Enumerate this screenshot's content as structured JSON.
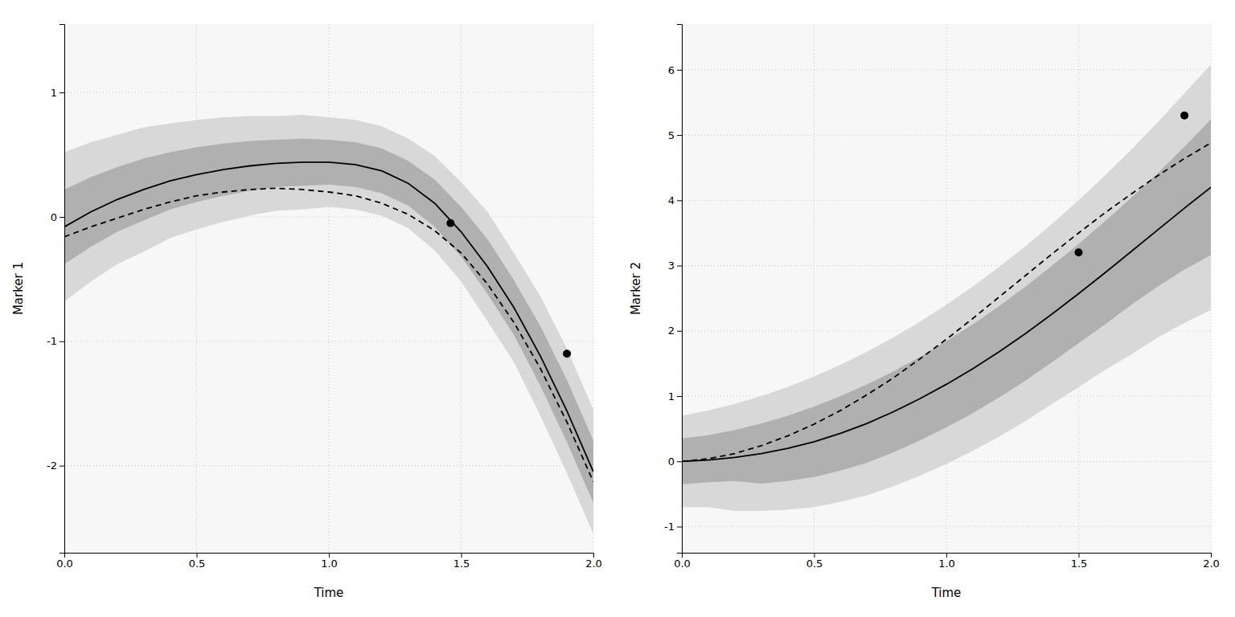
{
  "chart_data": [
    {
      "type": "line",
      "xlabel": "Time",
      "ylabel": "Marker 1",
      "xlim": [
        0.0,
        2.0
      ],
      "ylim": [
        -2.7,
        1.55
      ],
      "xticks": [
        {
          "value": 0.0,
          "label": "0.0"
        },
        0.5,
        {
          "value": 1.0,
          "label": "1.0"
        },
        1.5,
        {
          "value": 2.0,
          "label": "2.0"
        }
      ],
      "yticks": [
        -2,
        -1,
        0,
        1
      ],
      "grid": true,
      "series": [
        {
          "type": "band",
          "color": "#d8d8d8",
          "x": [
            0.0,
            0.1,
            0.2,
            0.3,
            0.4,
            0.5,
            0.6,
            0.7,
            0.8,
            0.9,
            1.0,
            1.1,
            1.2,
            1.3,
            1.4,
            1.5,
            1.6,
            1.7,
            1.8,
            1.9,
            2.0
          ],
          "lower": [
            -0.68,
            -0.52,
            -0.38,
            -0.28,
            -0.17,
            -0.1,
            -0.04,
            0.01,
            0.05,
            0.06,
            0.08,
            0.06,
            0.01,
            -0.09,
            -0.27,
            -0.52,
            -0.84,
            -1.17,
            -1.6,
            -2.06,
            -2.55
          ],
          "upper": [
            0.52,
            0.6,
            0.66,
            0.72,
            0.75,
            0.78,
            0.8,
            0.81,
            0.81,
            0.82,
            0.8,
            0.78,
            0.73,
            0.63,
            0.49,
            0.28,
            0.04,
            -0.29,
            -0.64,
            -1.06,
            -1.55
          ]
        },
        {
          "type": "band",
          "color": "#b0b0b0",
          "x": [
            0.0,
            0.1,
            0.2,
            0.3,
            0.4,
            0.5,
            0.6,
            0.7,
            0.8,
            0.9,
            1.0,
            1.1,
            1.2,
            1.3,
            1.4,
            1.5,
            1.6,
            1.7,
            1.8,
            1.9,
            2.0
          ],
          "lower": [
            -0.38,
            -0.24,
            -0.12,
            -0.03,
            0.06,
            0.12,
            0.17,
            0.21,
            0.24,
            0.25,
            0.26,
            0.24,
            0.19,
            0.09,
            -0.08,
            -0.32,
            -0.62,
            -0.95,
            -1.36,
            -1.81,
            -2.3
          ],
          "upper": [
            0.22,
            0.32,
            0.4,
            0.47,
            0.52,
            0.56,
            0.59,
            0.61,
            0.62,
            0.63,
            0.62,
            0.6,
            0.55,
            0.45,
            0.3,
            0.08,
            -0.18,
            -0.51,
            -0.88,
            -1.31,
            -1.8
          ]
        },
        {
          "type": "line",
          "line_style": "solid",
          "color": "#000000",
          "x": [
            0.0,
            0.1,
            0.2,
            0.3,
            0.4,
            0.5,
            0.6,
            0.7,
            0.8,
            0.9,
            1.0,
            1.1,
            1.2,
            1.3,
            1.4,
            1.5,
            1.6,
            1.7,
            1.8,
            1.9,
            2.0
          ],
          "values": [
            -0.08,
            0.04,
            0.14,
            0.22,
            0.29,
            0.34,
            0.38,
            0.41,
            0.43,
            0.44,
            0.44,
            0.42,
            0.37,
            0.27,
            0.11,
            -0.12,
            -0.4,
            -0.73,
            -1.12,
            -1.56,
            -2.05
          ]
        },
        {
          "type": "line",
          "line_style": "dashed",
          "color": "#000000",
          "x": [
            0.0,
            0.1,
            0.2,
            0.3,
            0.4,
            0.5,
            0.6,
            0.7,
            0.8,
            0.9,
            1.0,
            1.1,
            1.2,
            1.3,
            1.4,
            1.5,
            1.6,
            1.7,
            1.8,
            1.9,
            2.0
          ],
          "values": [
            -0.16,
            -0.08,
            -0.01,
            0.06,
            0.12,
            0.17,
            0.2,
            0.22,
            0.23,
            0.22,
            0.2,
            0.17,
            0.11,
            0.02,
            -0.11,
            -0.29,
            -0.54,
            -0.85,
            -1.22,
            -1.65,
            -2.13
          ]
        },
        {
          "type": "scatter",
          "marker": "circle",
          "color": "#000000",
          "x": [
            1.46,
            1.9
          ],
          "values": [
            -0.05,
            -1.1
          ]
        }
      ]
    },
    {
      "type": "line",
      "xlabel": "Time",
      "ylabel": "Marker 2",
      "xlim": [
        0.0,
        2.0
      ],
      "ylim": [
        -1.4,
        6.7
      ],
      "xticks": [
        {
          "value": 0.0,
          "label": "0.0"
        },
        0.5,
        {
          "value": 1.0,
          "label": "1.0"
        },
        1.5,
        {
          "value": 2.0,
          "label": "2.0"
        }
      ],
      "yticks": [
        -1,
        0,
        1,
        2,
        3,
        4,
        5,
        6
      ],
      "grid": true,
      "series": [
        {
          "type": "band",
          "color": "#d8d8d8",
          "x": [
            0.0,
            0.1,
            0.2,
            0.3,
            0.4,
            0.5,
            0.6,
            0.7,
            0.8,
            0.9,
            1.0,
            1.1,
            1.2,
            1.3,
            1.4,
            1.5,
            1.6,
            1.7,
            1.8,
            1.9,
            2.0
          ],
          "lower": [
            -0.7,
            -0.7,
            -0.76,
            -0.76,
            -0.74,
            -0.7,
            -0.62,
            -0.52,
            -0.38,
            -0.22,
            -0.04,
            0.16,
            0.38,
            0.62,
            0.88,
            1.14,
            1.4,
            1.64,
            1.9,
            2.12,
            2.32
          ],
          "upper": [
            0.7,
            0.78,
            0.88,
            1.0,
            1.14,
            1.3,
            1.48,
            1.68,
            1.9,
            2.14,
            2.4,
            2.68,
            2.98,
            3.3,
            3.64,
            4.0,
            4.38,
            4.78,
            5.2,
            5.64,
            6.08
          ]
        },
        {
          "type": "band",
          "color": "#b0b0b0",
          "x": [
            0.0,
            0.1,
            0.2,
            0.3,
            0.4,
            0.5,
            0.6,
            0.7,
            0.8,
            0.9,
            1.0,
            1.1,
            1.2,
            1.3,
            1.4,
            1.5,
            1.6,
            1.7,
            1.8,
            1.9,
            2.0
          ],
          "lower": [
            -0.35,
            -0.32,
            -0.3,
            -0.34,
            -0.3,
            -0.24,
            -0.14,
            -0.02,
            0.14,
            0.32,
            0.52,
            0.74,
            0.98,
            1.24,
            1.52,
            1.81,
            2.1,
            2.4,
            2.68,
            2.94,
            3.16
          ],
          "upper": [
            0.35,
            0.4,
            0.48,
            0.58,
            0.7,
            0.84,
            1.0,
            1.18,
            1.38,
            1.6,
            1.84,
            2.1,
            2.38,
            2.68,
            3.0,
            3.33,
            3.68,
            4.04,
            4.42,
            4.82,
            5.24
          ]
        },
        {
          "type": "line",
          "line_style": "solid",
          "color": "#000000",
          "x": [
            0.0,
            0.1,
            0.2,
            0.3,
            0.4,
            0.5,
            0.6,
            0.7,
            0.8,
            0.9,
            1.0,
            1.1,
            1.2,
            1.3,
            1.4,
            1.5,
            1.6,
            1.7,
            1.8,
            1.9,
            2.0
          ],
          "values": [
            0.0,
            0.02,
            0.06,
            0.12,
            0.2,
            0.3,
            0.43,
            0.58,
            0.76,
            0.96,
            1.18,
            1.42,
            1.68,
            1.96,
            2.26,
            2.57,
            2.89,
            3.22,
            3.55,
            3.88,
            4.2
          ]
        },
        {
          "type": "line",
          "line_style": "dashed",
          "color": "#000000",
          "x": [
            0.0,
            0.1,
            0.2,
            0.3,
            0.4,
            0.5,
            0.6,
            0.7,
            0.8,
            0.9,
            1.0,
            1.1,
            1.2,
            1.3,
            1.4,
            1.5,
            1.6,
            1.7,
            1.8,
            1.9,
            2.0
          ],
          "values": [
            0.0,
            0.04,
            0.12,
            0.24,
            0.39,
            0.57,
            0.78,
            1.02,
            1.28,
            1.57,
            1.87,
            2.19,
            2.52,
            2.85,
            3.18,
            3.5,
            3.81,
            4.1,
            4.38,
            4.64,
            4.88
          ]
        },
        {
          "type": "scatter",
          "marker": "circle",
          "color": "#000000",
          "x": [
            1.5,
            1.9
          ],
          "values": [
            3.2,
            5.3
          ]
        }
      ]
    }
  ]
}
